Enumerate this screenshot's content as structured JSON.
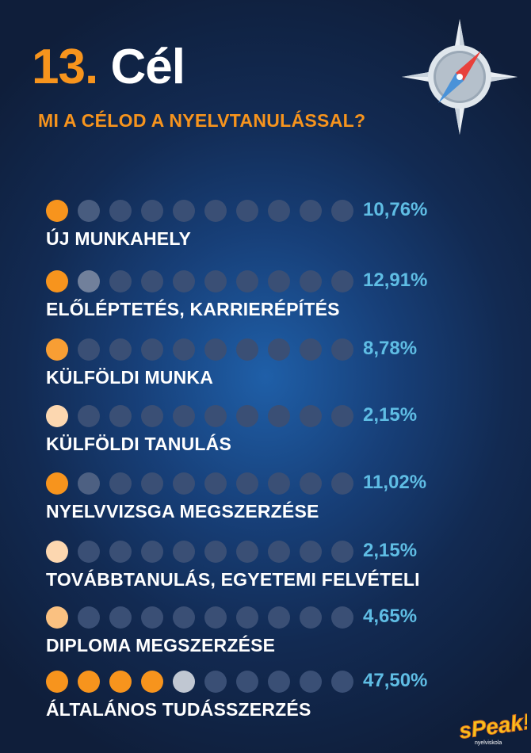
{
  "header": {
    "number": "13.",
    "word": "Cél",
    "subtitle": "MI A CÉLOD A NYELVTANULÁSSAL?"
  },
  "colors": {
    "accent": "#f7941d",
    "percent": "#5fbde4",
    "empty_dot": "#3a4f75",
    "background": "#153564"
  },
  "chart_data": {
    "type": "pictogram",
    "title": "MI A CÉLOD A NYELVTANULÁSSAL?",
    "dots_per_row": 10,
    "categories": [
      "ÚJ MUNKAHELY",
      "ELŐLÉPTETÉS, KARRIERÉPÍTÉS",
      "KÜLFÖLDI MUNKA",
      "KÜLFÖLDI TANULÁS",
      "NYELVVIZSGA MEGSZERZÉSE",
      "TOVÁBBTANULÁS, EGYETEMI FELVÉTELI",
      "DIPLOMA MEGSZERZÉSE",
      "ÁLTALÁNOS TUDÁSSZERZÉS"
    ],
    "values": [
      10.76,
      12.91,
      8.78,
      2.15,
      11.02,
      2.15,
      4.65,
      47.5
    ],
    "labels": [
      "10,76%",
      "12,91%",
      "8,78%",
      "2,15%",
      "11,02%",
      "2,15%",
      "4,65%",
      "47,50%"
    ],
    "unit": "%"
  },
  "logo": {
    "text": "sPeak!",
    "sub": "nyelviskola"
  }
}
